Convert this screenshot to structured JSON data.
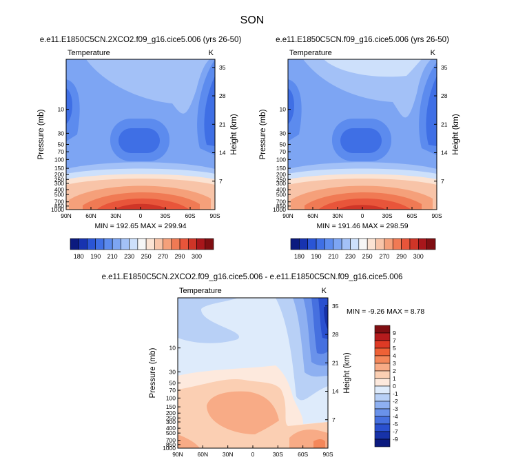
{
  "page_title": "SON",
  "chart_data": [
    {
      "type": "heatmap",
      "subtype": "filled-contour",
      "title": "e.e11.E1850C5CN.2XCO2.f09_g16.cice5.006 (yrs 26-50)",
      "variable": "Temperature",
      "units": "K",
      "xlabel": "",
      "ylabel": "Pressure (mb)",
      "ylabel_right": "Height (km)",
      "x_ticks": [
        "90N",
        "60N",
        "30N",
        "0",
        "30S",
        "60S",
        "90S"
      ],
      "y_ticks": [
        "10",
        "30",
        "50",
        "70",
        "100",
        "150",
        "200",
        "250",
        "300",
        "400",
        "500",
        "700",
        "850",
        "1000"
      ],
      "y_ticks_right": [
        "35",
        "28",
        "21",
        "14",
        "7"
      ],
      "stats_label": "MIN = 192.65   MAX = 299.94",
      "min": 192.65,
      "max": 299.94,
      "colorbar_labels": [
        "180",
        "190",
        "210",
        "230",
        "250",
        "270",
        "290",
        "300"
      ]
    },
    {
      "type": "heatmap",
      "subtype": "filled-contour",
      "title": "e.e11.E1850C5CN.f09_g16.cice5.006 (yrs 26-50)",
      "variable": "Temperature",
      "units": "K",
      "xlabel": "",
      "ylabel": "Pressure (mb)",
      "ylabel_right": "Height (km)",
      "x_ticks": [
        "90N",
        "60N",
        "30N",
        "0",
        "30S",
        "60S",
        "90S"
      ],
      "y_ticks": [
        "10",
        "30",
        "50",
        "70",
        "100",
        "150",
        "200",
        "250",
        "300",
        "400",
        "500",
        "700",
        "850",
        "1000"
      ],
      "y_ticks_right": [
        "35",
        "28",
        "21",
        "14",
        "7"
      ],
      "stats_label": "MIN = 191.46   MAX = 298.59",
      "min": 191.46,
      "max": 298.59,
      "colorbar_labels": [
        "180",
        "190",
        "210",
        "230",
        "250",
        "270",
        "290",
        "300"
      ]
    },
    {
      "type": "heatmap",
      "subtype": "filled-contour-difference",
      "title": "e.e11.E1850C5CN.2XCO2.f09_g16.cice5.006 - e.e11.E1850C5CN.f09_g16.cice5.006",
      "variable": "Temperature",
      "units": "K",
      "xlabel": "",
      "ylabel": "Pressure (mb)",
      "ylabel_right": "Height (km)",
      "x_ticks": [
        "90N",
        "60N",
        "30N",
        "0",
        "30S",
        "60S",
        "90S"
      ],
      "y_ticks": [
        "10",
        "30",
        "50",
        "70",
        "100",
        "150",
        "200",
        "250",
        "300",
        "400",
        "500",
        "700",
        "850",
        "1000"
      ],
      "y_ticks_right": [
        "35",
        "28",
        "21",
        "14",
        "7"
      ],
      "stats_label": "MIN = -9.26   MAX =  8.78",
      "min": -9.26,
      "max": 8.78,
      "colorbar_labels": [
        "9",
        "7",
        "5",
        "4",
        "3",
        "2",
        "1",
        "0",
        "-1",
        "-2",
        "-3",
        "-4",
        "-5",
        "-7",
        "-9"
      ]
    }
  ],
  "colors": {
    "abs_scale": [
      "#0b1a7f",
      "#1733b0",
      "#2a55d6",
      "#3f6fe5",
      "#5c8bee",
      "#7da5f3",
      "#a3c1f7",
      "#cde0fb",
      "#f6f6f6",
      "#fbe3d3",
      "#f8c4a8",
      "#f5a07a",
      "#f07a54",
      "#e8553a",
      "#cf3527",
      "#a8161b",
      "#7f0e12"
    ],
    "diff_scale": [
      "#7f0e12",
      "#b51b1d",
      "#de3a25",
      "#ee6136",
      "#f4875a",
      "#f8ab86",
      "#fbcfb3",
      "#fde9dd",
      "#deebfb",
      "#b8d0f6",
      "#8eb0f1",
      "#6a92ea",
      "#4670df",
      "#2a50cf",
      "#1732a8",
      "#0b1a7f"
    ]
  }
}
